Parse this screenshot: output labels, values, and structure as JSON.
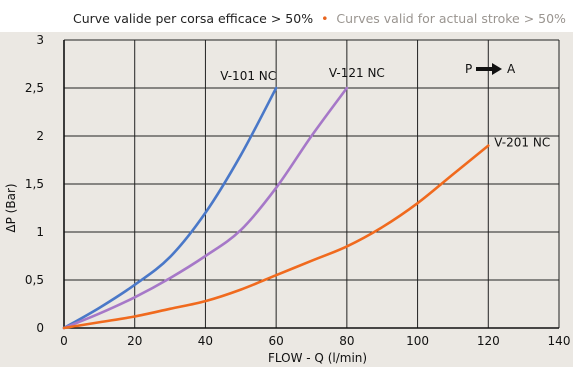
{
  "chart_data": {
    "type": "line",
    "title_it": "Curve valide per corsa efficace > 50%",
    "title_sep": "•",
    "title_en": "Curves valid for actual stroke > 50%",
    "xlabel": "FLOW - Q (l/min)",
    "ylabel": "ΔP (Bar)",
    "xlim": [
      0,
      140
    ],
    "ylim": [
      0,
      3
    ],
    "x_ticks": [
      0,
      20,
      40,
      60,
      80,
      100,
      120,
      140
    ],
    "x_tick_labels": [
      "0",
      "20",
      "40",
      "60",
      "80",
      "100",
      "120",
      "140"
    ],
    "y_ticks": [
      0,
      0.5,
      1,
      1.5,
      2,
      2.5,
      3
    ],
    "y_tick_labels": [
      "0",
      "0,5",
      "1",
      "1,5",
      "2",
      "2,5",
      "3"
    ],
    "grid": true,
    "annotation": {
      "text_left": "P",
      "text_right": "A",
      "arrow": "right"
    },
    "colors": {
      "title_it": "#222222",
      "title_dot": "#e8641e",
      "title_en": "#9a9590",
      "grid": "#222222",
      "background": "#ebe8e3"
    },
    "series": [
      {
        "name": "V-101 NC",
        "color": "#4a78c8",
        "x": [
          0,
          10,
          20,
          30,
          40,
          50,
          60
        ],
        "y": [
          0,
          0.21,
          0.45,
          0.74,
          1.2,
          1.8,
          2.5
        ]
      },
      {
        "name": "V-121 NC",
        "color": "#a678c8",
        "x": [
          0,
          10,
          20,
          30,
          40,
          50,
          60,
          70,
          80
        ],
        "y": [
          0,
          0.15,
          0.32,
          0.52,
          0.75,
          1.02,
          1.46,
          2.0,
          2.5
        ]
      },
      {
        "name": "V-201 NC",
        "color": "#f06a1e",
        "x": [
          0,
          10,
          20,
          30,
          40,
          50,
          60,
          70,
          80,
          90,
          100,
          110,
          120
        ],
        "y": [
          0,
          0.06,
          0.12,
          0.2,
          0.28,
          0.4,
          0.55,
          0.7,
          0.85,
          1.05,
          1.3,
          1.6,
          1.9
        ]
      }
    ]
  }
}
